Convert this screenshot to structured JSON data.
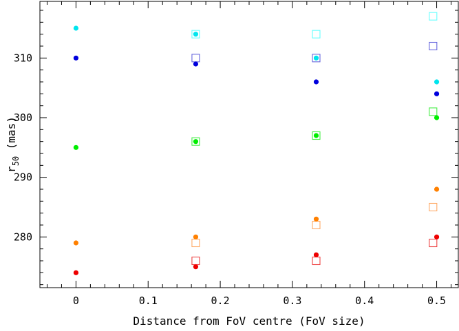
{
  "chart_data": {
    "type": "scatter",
    "title": "",
    "xlabel": "Distance from FoV centre (FoV size)",
    "ylabel": {
      "main": "r",
      "sub": "50",
      "suffix": " (mas)"
    },
    "xlim": [
      -0.05,
      0.53
    ],
    "ylim": [
      271.5,
      319.5
    ],
    "xticks": [
      {
        "value": 0,
        "label": "0"
      },
      {
        "value": 0.1,
        "label": "0.1"
      },
      {
        "value": 0.2,
        "label": "0.2"
      },
      {
        "value": 0.3,
        "label": "0.3"
      },
      {
        "value": 0.4,
        "label": "0.4"
      },
      {
        "value": 0.5,
        "label": "0.5"
      }
    ],
    "yticks": [
      {
        "value": 280,
        "label": "280"
      },
      {
        "value": 290,
        "label": "290"
      },
      {
        "value": 300,
        "label": "300"
      },
      {
        "value": 310,
        "label": "310"
      }
    ],
    "grid": false,
    "series": [
      {
        "color": "#00e5ee",
        "marker": "circle",
        "points": [
          [
            0,
            315
          ],
          [
            0.166,
            314
          ],
          [
            0.333,
            310
          ],
          [
            0.5,
            306
          ]
        ]
      },
      {
        "color": "#0000dd",
        "marker": "circle",
        "points": [
          [
            0,
            310
          ],
          [
            0.166,
            309
          ],
          [
            0.333,
            306
          ],
          [
            0.5,
            304
          ]
        ]
      },
      {
        "color": "#00ee00",
        "marker": "circle",
        "points": [
          [
            0,
            295
          ],
          [
            0.166,
            296
          ],
          [
            0.333,
            297
          ],
          [
            0.5,
            300
          ]
        ]
      },
      {
        "color": "#ff8000",
        "marker": "circle",
        "points": [
          [
            0,
            279
          ],
          [
            0.166,
            280
          ],
          [
            0.333,
            283
          ],
          [
            0.5,
            288
          ]
        ]
      },
      {
        "color": "#ee0000",
        "marker": "circle",
        "points": [
          [
            0,
            274
          ],
          [
            0.166,
            275
          ],
          [
            0.333,
            277
          ],
          [
            0.5,
            280
          ]
        ]
      },
      {
        "color": "#66ffff",
        "marker": "square",
        "points": [
          [
            0.166,
            314
          ],
          [
            0.333,
            314
          ],
          [
            0.495,
            317
          ]
        ]
      },
      {
        "color": "#6666dd",
        "marker": "square",
        "points": [
          [
            0.166,
            310
          ],
          [
            0.333,
            310
          ],
          [
            0.495,
            312
          ]
        ]
      },
      {
        "color": "#44ee44",
        "marker": "square",
        "points": [
          [
            0.166,
            296
          ],
          [
            0.333,
            297
          ],
          [
            0.495,
            301
          ]
        ]
      },
      {
        "color": "#ffaa66",
        "marker": "square",
        "points": [
          [
            0.166,
            279
          ],
          [
            0.333,
            282
          ],
          [
            0.495,
            285
          ]
        ]
      },
      {
        "color": "#ee4444",
        "marker": "square",
        "points": [
          [
            0.166,
            276
          ],
          [
            0.333,
            276
          ],
          [
            0.495,
            279
          ]
        ]
      }
    ]
  }
}
